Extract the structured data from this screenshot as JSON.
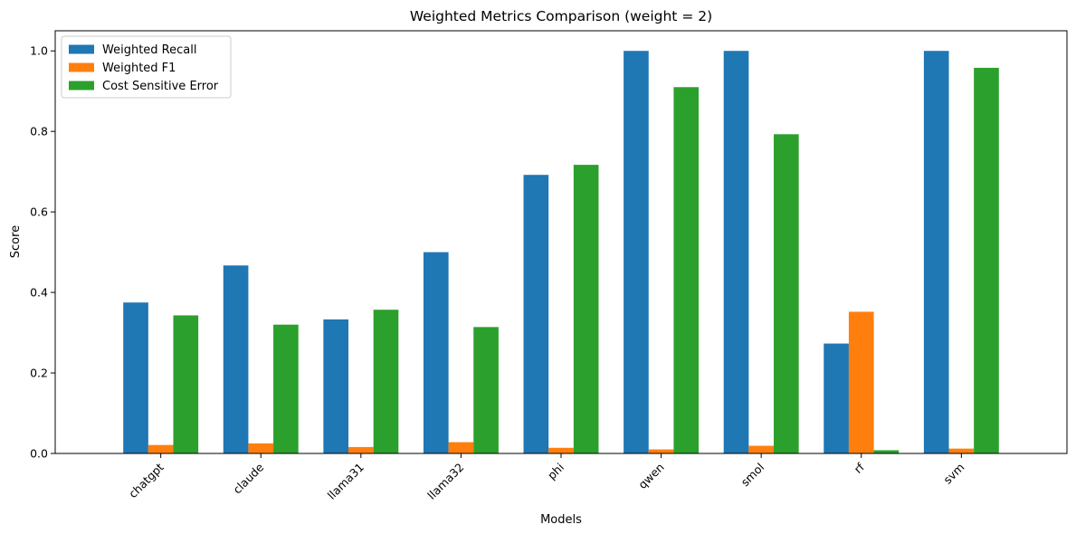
{
  "chart_data": {
    "type": "bar",
    "title": "Weighted Metrics Comparison (weight = 2)",
    "xlabel": "Models",
    "ylabel": "Score",
    "categories": [
      "chatgpt",
      "claude",
      "llama31",
      "llama32",
      "phi",
      "qwen",
      "smol",
      "rf",
      "svm"
    ],
    "series": [
      {
        "name": "Weighted Recall",
        "color": "#1f77b4",
        "values": [
          0.375,
          0.467,
          0.333,
          0.5,
          0.692,
          1.0,
          1.0,
          0.273,
          1.0
        ]
      },
      {
        "name": "Weighted F1",
        "color": "#ff7f0e",
        "values": [
          0.021,
          0.025,
          0.016,
          0.028,
          0.014,
          0.01,
          0.019,
          0.352,
          0.012
        ]
      },
      {
        "name": "Cost Sensitive Error",
        "color": "#2ca02c",
        "values": [
          0.343,
          0.32,
          0.357,
          0.314,
          0.717,
          0.91,
          0.793,
          0.008,
          0.958
        ]
      }
    ],
    "ylim": [
      0,
      1.05
    ],
    "yticks": [
      "0.0",
      "0.2",
      "0.4",
      "0.6",
      "0.8",
      "1.0"
    ],
    "legend_position": "top-left",
    "grid": false
  }
}
